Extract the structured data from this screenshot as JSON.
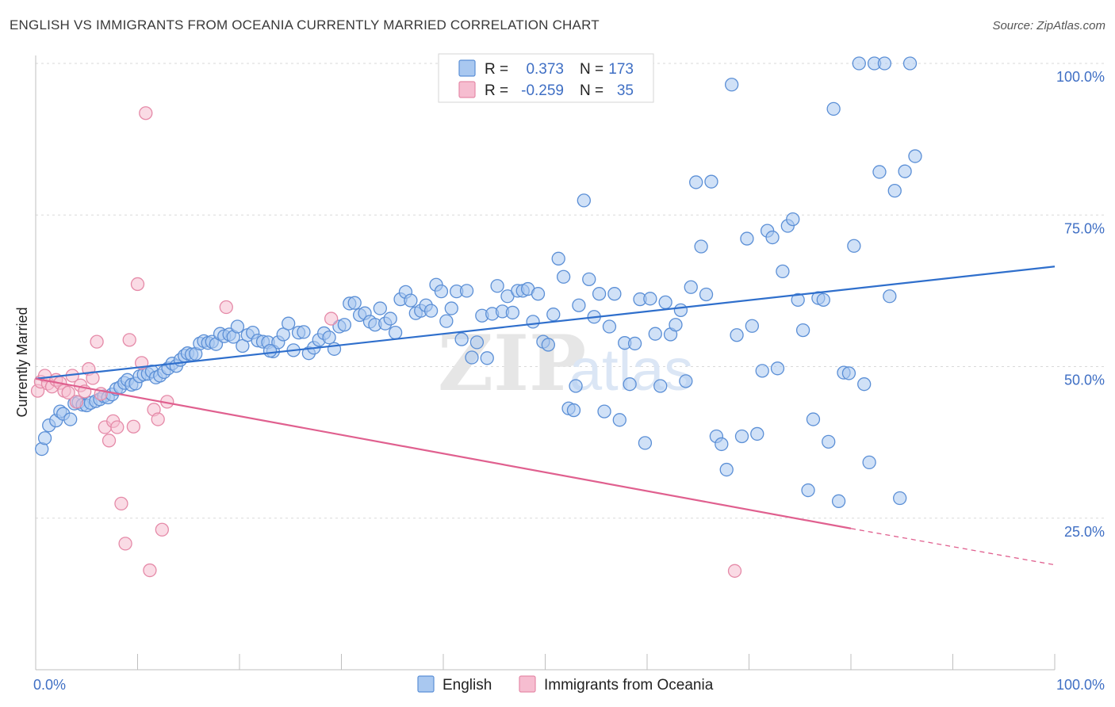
{
  "title": "ENGLISH VS IMMIGRANTS FROM OCEANIA CURRENTLY MARRIED CORRELATION CHART",
  "source": "Source: ZipAtlas.com",
  "watermark": {
    "zip": "ZIP",
    "atlas": "atlas"
  },
  "colors": {
    "english_fill": "#a9c8f0",
    "english_stroke": "#5b8fd6",
    "english_line": "#2f6fcc",
    "oceania_fill": "#f6bdd0",
    "oceania_stroke": "#e58aa8",
    "oceania_line": "#e0608f",
    "grid": "#d9d9d9",
    "tick_label": "#3f6fc4"
  },
  "stats_legend": [
    {
      "r_label": "R =",
      "r_value": "0.373",
      "n_label": "N =",
      "n_value": "173"
    },
    {
      "r_label": "R =",
      "r_value": "-0.259",
      "n_label": "N =",
      "n_value": "35"
    }
  ],
  "chart_data": {
    "type": "scatter",
    "xlabel": "",
    "ylabel": "Currently Married",
    "xlim": [
      0,
      100
    ],
    "ylim": [
      0,
      105
    ],
    "x_tick_labels": [
      {
        "value": 0,
        "label": "0.0%"
      },
      {
        "value": 100,
        "label": "100.0%"
      }
    ],
    "y_tick_labels": [
      {
        "value": 25,
        "label": "25.0%"
      },
      {
        "value": 50,
        "label": "50.0%"
      },
      {
        "value": 75,
        "label": "75.0%"
      },
      {
        "value": 100,
        "label": "100.0%"
      }
    ],
    "grid": true,
    "legend_position": "bottom",
    "series": [
      {
        "name": "English",
        "trend": {
          "x": [
            0,
            100
          ],
          "y": [
            48.0,
            66.5
          ]
        },
        "points": [
          [
            0.6,
            36.4
          ],
          [
            0.9,
            38.2
          ],
          [
            1.3,
            40.3
          ],
          [
            2.0,
            41.1
          ],
          [
            2.4,
            42.6
          ],
          [
            2.7,
            42.2
          ],
          [
            3.4,
            41.3
          ],
          [
            3.8,
            43.9
          ],
          [
            4.2,
            44.1
          ],
          [
            4.6,
            43.7
          ],
          [
            5.0,
            43.6
          ],
          [
            5.4,
            44.0
          ],
          [
            5.9,
            44.3
          ],
          [
            6.3,
            44.6
          ],
          [
            6.7,
            45.1
          ],
          [
            7.1,
            44.9
          ],
          [
            7.5,
            45.4
          ],
          [
            7.9,
            46.3
          ],
          [
            8.3,
            46.6
          ],
          [
            8.7,
            47.3
          ],
          [
            9.0,
            47.8
          ],
          [
            9.4,
            47.0
          ],
          [
            9.8,
            47.2
          ],
          [
            10.2,
            48.4
          ],
          [
            10.6,
            48.7
          ],
          [
            11.0,
            48.8
          ],
          [
            11.4,
            49.2
          ],
          [
            11.8,
            48.2
          ],
          [
            12.2,
            48.5
          ],
          [
            12.6,
            49.1
          ],
          [
            13.0,
            49.7
          ],
          [
            13.4,
            50.5
          ],
          [
            13.8,
            50.1
          ],
          [
            14.2,
            51.1
          ],
          [
            14.6,
            51.8
          ],
          [
            14.9,
            52.2
          ],
          [
            15.3,
            52.0
          ],
          [
            15.7,
            52.1
          ],
          [
            16.1,
            53.8
          ],
          [
            16.5,
            54.2
          ],
          [
            16.9,
            53.9
          ],
          [
            17.3,
            54.1
          ],
          [
            17.7,
            53.7
          ],
          [
            18.1,
            55.4
          ],
          [
            18.5,
            55.0
          ],
          [
            19.0,
            55.3
          ],
          [
            19.4,
            54.9
          ],
          [
            19.8,
            56.6
          ],
          [
            20.3,
            53.4
          ],
          [
            20.8,
            55.2
          ],
          [
            21.3,
            55.6
          ],
          [
            21.8,
            54.3
          ],
          [
            22.3,
            54.1
          ],
          [
            22.8,
            54.0
          ],
          [
            23.3,
            52.5
          ],
          [
            23.8,
            54.0
          ],
          [
            24.3,
            55.3
          ],
          [
            24.8,
            57.1
          ],
          [
            25.3,
            52.7
          ],
          [
            25.8,
            55.6
          ],
          [
            26.3,
            55.7
          ],
          [
            26.8,
            52.2
          ],
          [
            27.3,
            53.1
          ],
          [
            27.8,
            54.4
          ],
          [
            28.3,
            55.5
          ],
          [
            28.8,
            54.8
          ],
          [
            29.3,
            52.9
          ],
          [
            29.8,
            56.6
          ],
          [
            30.3,
            56.9
          ],
          [
            30.8,
            60.4
          ],
          [
            31.3,
            60.5
          ],
          [
            31.8,
            58.5
          ],
          [
            32.3,
            58.8
          ],
          [
            32.8,
            57.4
          ],
          [
            33.3,
            56.9
          ],
          [
            33.8,
            59.6
          ],
          [
            34.3,
            57.1
          ],
          [
            34.8,
            57.9
          ],
          [
            35.3,
            55.6
          ],
          [
            35.8,
            61.1
          ],
          [
            36.3,
            62.3
          ],
          [
            36.8,
            60.9
          ],
          [
            37.3,
            58.8
          ],
          [
            37.8,
            59.2
          ],
          [
            38.3,
            60.1
          ],
          [
            38.8,
            59.2
          ],
          [
            39.3,
            63.5
          ],
          [
            39.8,
            62.4
          ],
          [
            40.3,
            57.5
          ],
          [
            40.8,
            59.6
          ],
          [
            41.3,
            62.4
          ],
          [
            41.8,
            54.5
          ],
          [
            42.3,
            62.5
          ],
          [
            42.8,
            51.5
          ],
          [
            43.3,
            54.0
          ],
          [
            43.8,
            58.4
          ],
          [
            44.3,
            51.4
          ],
          [
            44.8,
            58.7
          ],
          [
            45.3,
            63.3
          ],
          [
            45.8,
            59.1
          ],
          [
            46.3,
            61.6
          ],
          [
            46.8,
            58.9
          ],
          [
            47.3,
            62.5
          ],
          [
            47.8,
            62.5
          ],
          [
            48.3,
            62.8
          ],
          [
            48.8,
            57.4
          ],
          [
            49.3,
            62.0
          ],
          [
            49.8,
            54.1
          ],
          [
            50.3,
            53.6
          ],
          [
            50.8,
            58.6
          ],
          [
            51.3,
            67.8
          ],
          [
            51.8,
            64.8
          ],
          [
            52.3,
            43.1
          ],
          [
            52.8,
            42.8
          ],
          [
            53.3,
            60.1
          ],
          [
            53.8,
            77.4
          ],
          [
            54.3,
            64.4
          ],
          [
            54.8,
            58.2
          ],
          [
            55.3,
            62.0
          ],
          [
            55.8,
            42.6
          ],
          [
            56.3,
            56.6
          ],
          [
            56.8,
            62.0
          ],
          [
            57.3,
            41.2
          ],
          [
            57.8,
            53.9
          ],
          [
            58.3,
            47.1
          ],
          [
            58.8,
            53.8
          ],
          [
            59.3,
            61.1
          ],
          [
            59.8,
            37.4
          ],
          [
            60.3,
            61.2
          ],
          [
            60.8,
            55.4
          ],
          [
            61.3,
            46.8
          ],
          [
            61.8,
            60.6
          ],
          [
            62.3,
            55.3
          ],
          [
            62.8,
            56.9
          ],
          [
            63.3,
            59.3
          ],
          [
            63.8,
            47.6
          ],
          [
            64.3,
            63.1
          ],
          [
            64.8,
            80.4
          ],
          [
            65.3,
            69.8
          ],
          [
            65.8,
            61.9
          ],
          [
            66.3,
            80.5
          ],
          [
            66.8,
            38.5
          ],
          [
            67.3,
            37.2
          ],
          [
            67.8,
            33.0
          ],
          [
            68.3,
            96.5
          ],
          [
            68.8,
            55.2
          ],
          [
            69.3,
            38.5
          ],
          [
            69.8,
            71.1
          ],
          [
            70.3,
            56.7
          ],
          [
            70.8,
            38.9
          ],
          [
            71.3,
            49.3
          ],
          [
            71.8,
            72.4
          ],
          [
            72.3,
            71.3
          ],
          [
            72.8,
            49.7
          ],
          [
            73.3,
            65.7
          ],
          [
            73.8,
            73.2
          ],
          [
            74.3,
            74.3
          ],
          [
            74.8,
            61.0
          ],
          [
            75.3,
            56.0
          ],
          [
            75.8,
            29.6
          ],
          [
            76.3,
            41.3
          ],
          [
            76.8,
            61.3
          ],
          [
            77.3,
            61.0
          ],
          [
            77.8,
            37.6
          ],
          [
            78.3,
            92.5
          ],
          [
            78.8,
            27.8
          ],
          [
            79.3,
            49.0
          ],
          [
            79.8,
            48.9
          ],
          [
            80.3,
            69.9
          ],
          [
            80.8,
            100.0
          ],
          [
            81.3,
            47.1
          ],
          [
            81.8,
            34.2
          ],
          [
            82.3,
            100.0
          ],
          [
            82.8,
            82.1
          ],
          [
            83.3,
            100.0
          ],
          [
            83.8,
            61.6
          ],
          [
            84.3,
            79.0
          ],
          [
            84.8,
            28.3
          ],
          [
            85.3,
            82.2
          ],
          [
            85.8,
            100.0
          ],
          [
            86.3,
            84.7
          ],
          [
            53.0,
            46.8
          ],
          [
            23.0,
            52.6
          ]
        ]
      },
      {
        "name": "Immigrants from Oceania",
        "trend": {
          "x": [
            0,
            80
          ],
          "y": [
            48.0,
            23.3
          ]
        },
        "trend_dashed": {
          "x": [
            80,
            100
          ],
          "y": [
            23.3,
            17.3
          ]
        },
        "points": [
          [
            0.2,
            46.0
          ],
          [
            0.5,
            47.5
          ],
          [
            0.9,
            48.5
          ],
          [
            1.2,
            47.2
          ],
          [
            1.6,
            46.7
          ],
          [
            2.0,
            47.8
          ],
          [
            2.4,
            47.3
          ],
          [
            2.8,
            46.0
          ],
          [
            3.2,
            45.7
          ],
          [
            3.6,
            48.5
          ],
          [
            4.0,
            44.2
          ],
          [
            4.4,
            46.9
          ],
          [
            4.8,
            45.9
          ],
          [
            5.2,
            49.6
          ],
          [
            5.6,
            48.1
          ],
          [
            6.0,
            54.1
          ],
          [
            6.4,
            45.5
          ],
          [
            6.8,
            40.0
          ],
          [
            7.2,
            37.8
          ],
          [
            7.6,
            41.0
          ],
          [
            8.0,
            40.0
          ],
          [
            8.4,
            27.4
          ],
          [
            8.8,
            20.8
          ],
          [
            9.2,
            54.4
          ],
          [
            9.6,
            40.1
          ],
          [
            10.0,
            63.6
          ],
          [
            10.4,
            50.6
          ],
          [
            10.8,
            91.8
          ],
          [
            11.2,
            16.4
          ],
          [
            11.6,
            42.9
          ],
          [
            12.0,
            41.3
          ],
          [
            12.4,
            23.1
          ],
          [
            12.9,
            44.2
          ],
          [
            18.7,
            59.8
          ],
          [
            29.0,
            57.9
          ],
          [
            68.6,
            16.3
          ]
        ]
      }
    ]
  }
}
